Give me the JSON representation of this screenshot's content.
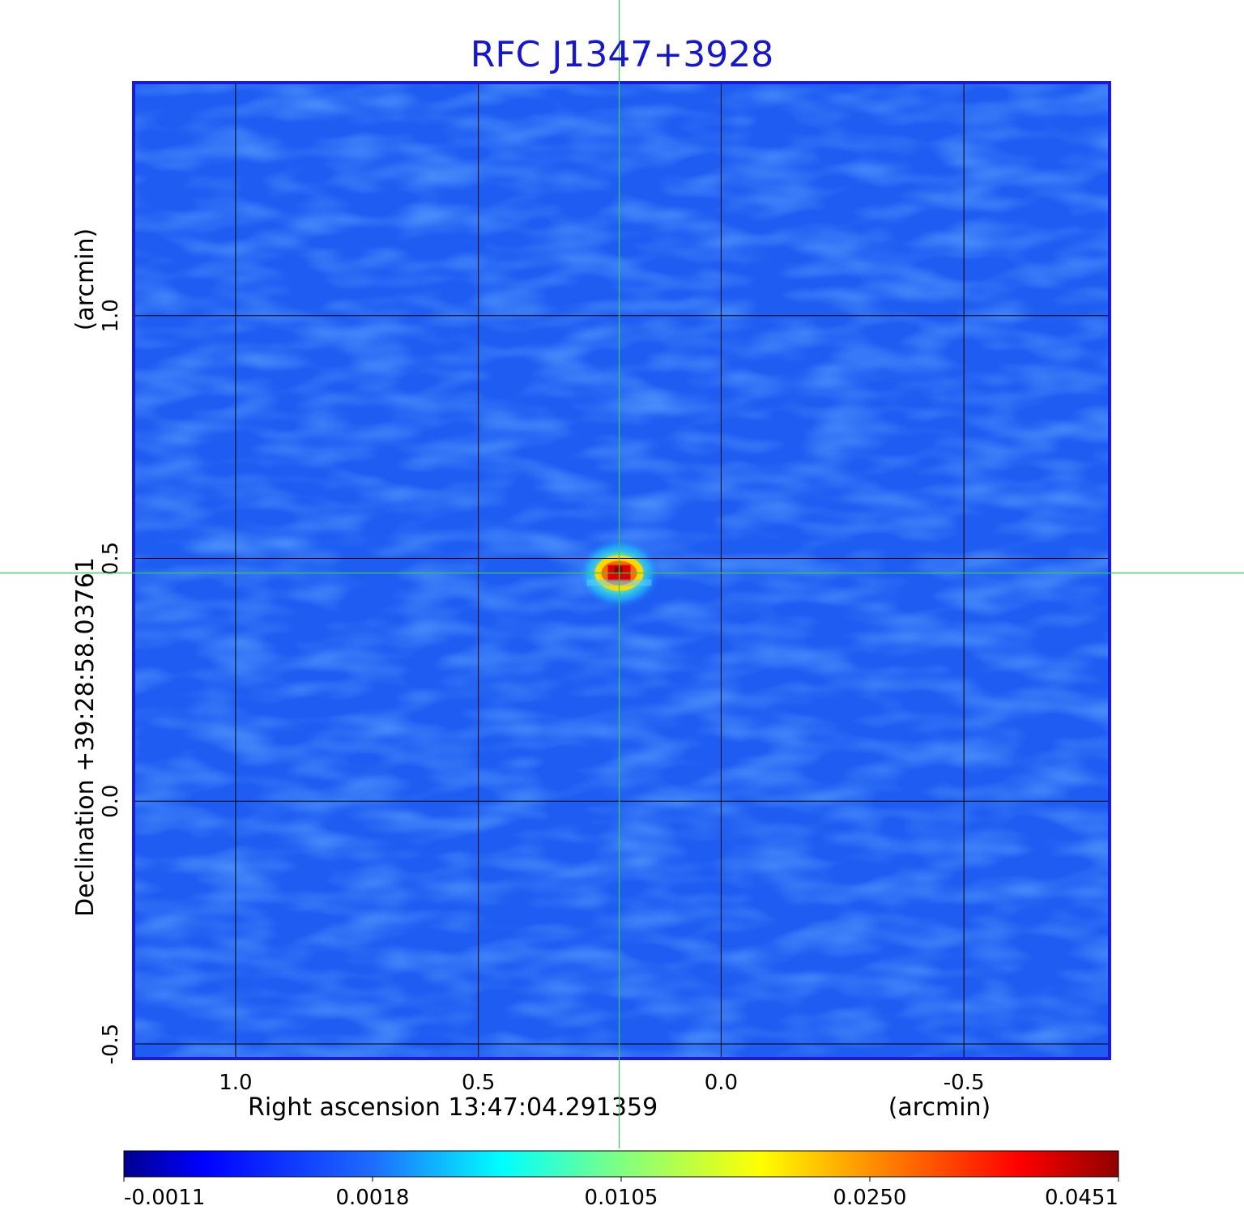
{
  "chart_data": {
    "type": "heatmap",
    "title": "RFC J1347+3928",
    "xlabel": "Right ascension  13:47:04.291359",
    "xunit": "(arcmin)",
    "ylabel": "Declination  +39:28:58.03761",
    "yunit": "(arcmin)",
    "x_ticks": [
      1.0,
      0.5,
      0.0,
      -0.5
    ],
    "x_tick_labels": [
      "1.0",
      "0.5",
      "0.0",
      "-0.5"
    ],
    "y_ticks": [
      1.0,
      0.5,
      0.0,
      -0.5
    ],
    "y_tick_labels": [
      "1.0",
      "0.5",
      "0.0",
      "-0.5"
    ],
    "xlim": [
      1.21,
      -0.8
    ],
    "ylim": [
      -0.53,
      1.48
    ],
    "x_reversed": true,
    "grid": true,
    "colormap": "jet",
    "colorbar_ticks": [
      -0.0011,
      0.0018,
      0.0105,
      0.025,
      0.0451
    ],
    "colorbar_tick_labels": [
      "-0.0011",
      "0.0018",
      "0.0105",
      "0.0250",
      "0.0451"
    ],
    "colorbar_range": [
      -0.0011,
      0.0451
    ],
    "crosshair": {
      "x": 0.21,
      "y": 0.47
    },
    "source_peak": {
      "x": 0.21,
      "y": 0.47,
      "value": 0.0451
    },
    "colors": {
      "background": "#1f5df2",
      "frame": "#1a1adf",
      "grid": "#000000",
      "crosshair": "#33cc55",
      "title": "#1515d8"
    }
  }
}
